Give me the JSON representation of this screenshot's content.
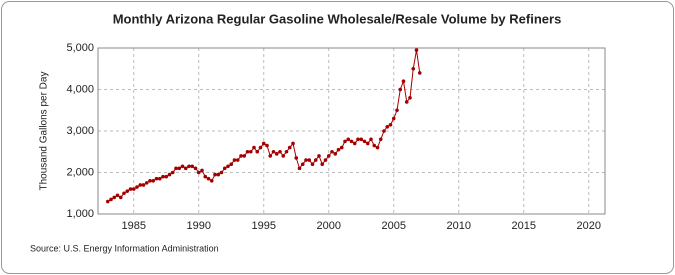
{
  "chart_data": {
    "type": "line",
    "title": "Monthly Arizona Regular Gasoline Wholesale/Resale Volume by Refiners",
    "y_label": "Thousand Gallons per Day",
    "source": "Source: U.S. Energy Information Administration",
    "x": [
      1983,
      1983.25,
      1983.5,
      1983.75,
      1984,
      1984.25,
      1984.5,
      1984.75,
      1985,
      1985.25,
      1985.5,
      1985.75,
      1986,
      1986.25,
      1986.5,
      1986.75,
      1987,
      1987.25,
      1987.5,
      1987.75,
      1988,
      1988.25,
      1988.5,
      1988.75,
      1989,
      1989.25,
      1989.5,
      1989.75,
      1990,
      1990.25,
      1990.5,
      1990.75,
      1991,
      1991.25,
      1991.5,
      1991.75,
      1992,
      1992.25,
      1992.5,
      1992.75,
      1993,
      1993.25,
      1993.5,
      1993.75,
      1994,
      1994.25,
      1994.5,
      1994.75,
      1995,
      1995.25,
      1995.5,
      1995.75,
      1996,
      1996.25,
      1996.5,
      1996.75,
      1997,
      1997.25,
      1997.5,
      1997.75,
      1998,
      1998.25,
      1998.5,
      1998.75,
      1999,
      1999.25,
      1999.5,
      1999.75,
      2000,
      2000.25,
      2000.5,
      2000.75,
      2001,
      2001.25,
      2001.5,
      2001.75,
      2002,
      2002.25,
      2002.5,
      2002.75,
      2003,
      2003.25,
      2003.5,
      2003.75,
      2004,
      2004.25,
      2004.5,
      2004.75,
      2005,
      2005.25,
      2005.5,
      2005.75,
      2006,
      2006.25,
      2006.5,
      2006.75,
      2007
    ],
    "series": [
      {
        "name": "Arizona Regular Gasoline Wholesale/Resale Volume by Refiners",
        "color": "#a50000",
        "values": [
          1300,
          1350,
          1400,
          1450,
          1400,
          1500,
          1550,
          1600,
          1600,
          1650,
          1700,
          1700,
          1750,
          1800,
          1800,
          1850,
          1850,
          1900,
          1900,
          1950,
          2000,
          2100,
          2100,
          2150,
          2100,
          2150,
          2150,
          2100,
          2000,
          2050,
          1900,
          1850,
          1800,
          1950,
          1950,
          2000,
          2100,
          2150,
          2200,
          2300,
          2300,
          2400,
          2400,
          2500,
          2500,
          2600,
          2500,
          2600,
          2700,
          2650,
          2400,
          2500,
          2450,
          2500,
          2400,
          2500,
          2600,
          2700,
          2350,
          2100,
          2200,
          2300,
          2300,
          2200,
          2300,
          2400,
          2200,
          2300,
          2400,
          2500,
          2450,
          2550,
          2600,
          2750,
          2800,
          2750,
          2700,
          2800,
          2800,
          2750,
          2700,
          2800,
          2650,
          2600,
          2800,
          3000,
          3100,
          3150,
          3300,
          3500,
          4000,
          4200,
          3700,
          3800,
          4500,
          4950,
          4400
        ]
      }
    ],
    "xlim": [
      1982.25,
      2021.25
    ],
    "ylim": [
      1000,
      5000
    ],
    "xticks": [
      1985,
      1990,
      1995,
      2000,
      2005,
      2010,
      2015,
      2020
    ],
    "yticks": [
      {
        "value": 1000,
        "label": "1,000"
      },
      {
        "value": 2000,
        "label": "2,000"
      },
      {
        "value": 3000,
        "label": "3,000"
      },
      {
        "value": 4000,
        "label": "4,000"
      },
      {
        "value": 5000,
        "label": "5,000"
      }
    ],
    "grid": true
  }
}
